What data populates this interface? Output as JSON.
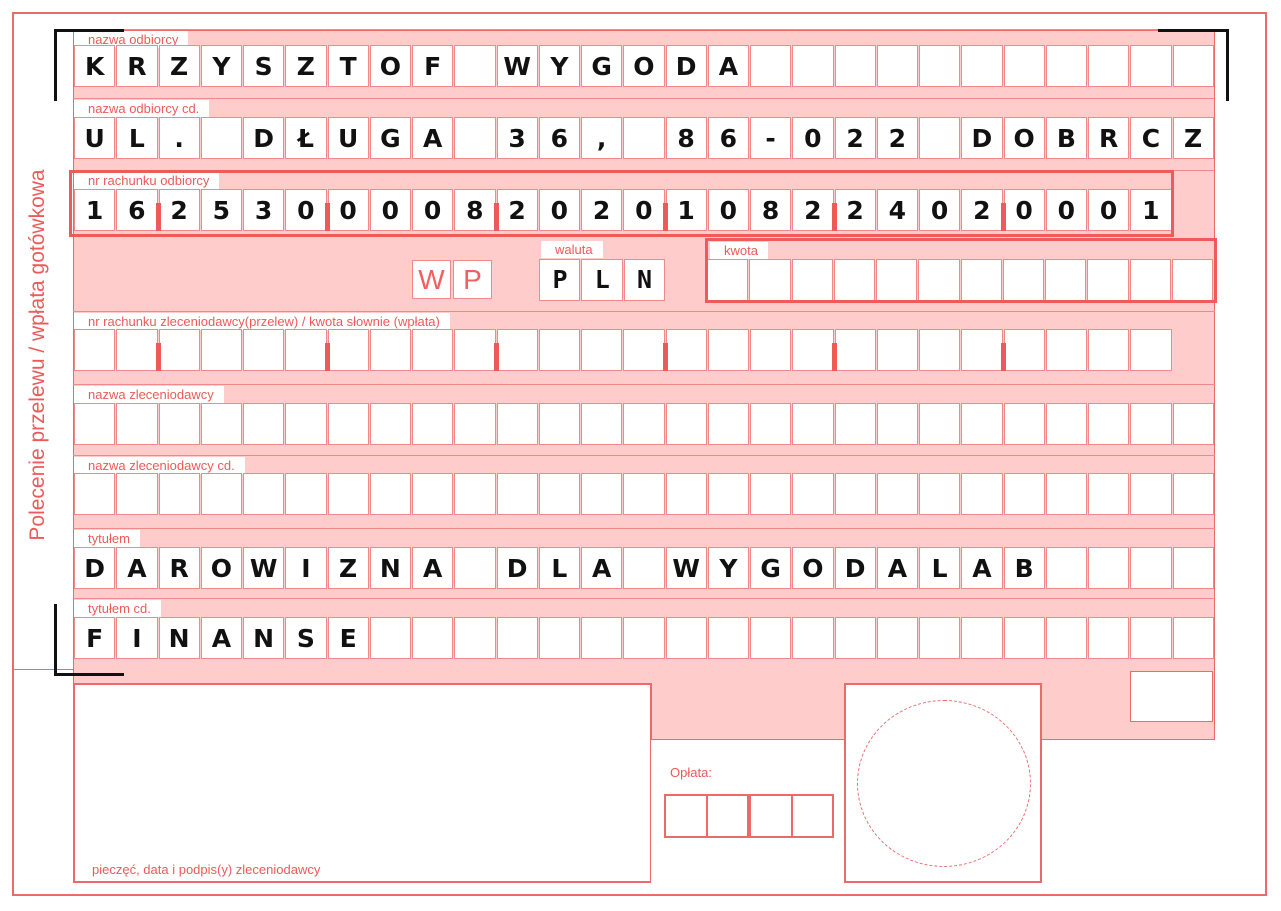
{
  "side_title": "Polecenie przelewu / wpłata gotówkowa",
  "rows": [
    {
      "label": "nazwa odbiorcy",
      "text": "KRZYSZTOF WYGODA",
      "cells": 27
    },
    {
      "label": "nazwa odbiorcy cd.",
      "text": "UL. DŁUGA 36, 86-022 DOBRCZ",
      "cells": 27
    },
    {
      "label": "nr rachunku odbiorcy",
      "text": "16253000082020108224020001",
      "cells": 26
    },
    {
      "label": "nr rachunku zleceniodawcy(przelew) / kwota słownie (wpłata)",
      "text": "",
      "cells": 26
    },
    {
      "label": "nazwa zleceniodawcy",
      "text": "",
      "cells": 27
    },
    {
      "label": "nazwa zleceniodawcy cd.",
      "text": "",
      "cells": 27
    },
    {
      "label": "tytułem",
      "text": "DAROWIZNA DLA WYGODALAB",
      "cells": 27
    },
    {
      "label": "tytułem cd.",
      "text": "FINANSE",
      "cells": 27
    }
  ],
  "form_type": {
    "w": "W",
    "p": "P"
  },
  "currency": {
    "label": "waluta",
    "value": "PLN"
  },
  "amount": {
    "label": "kwota",
    "value": ""
  },
  "fee": {
    "label": "Opłata:"
  },
  "signature_label": "pieczęć, data i podpis(y) zleceniodawcy",
  "colors": {
    "accent": "#ec5a5a",
    "background": "#ffcccc"
  }
}
